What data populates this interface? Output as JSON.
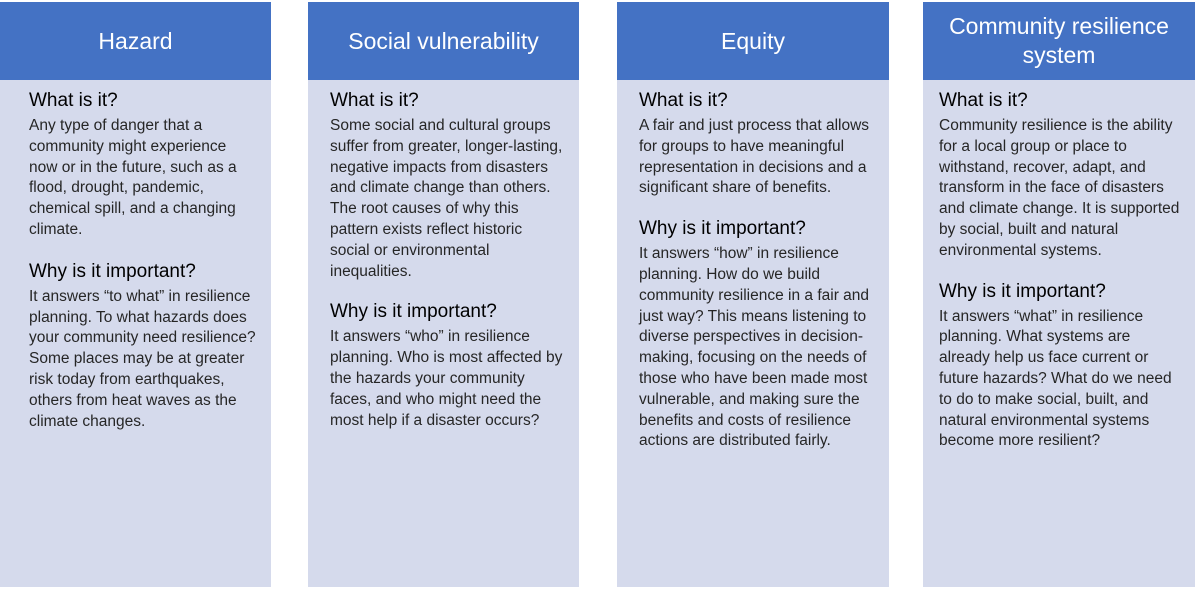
{
  "columns": [
    {
      "title": "Hazard",
      "q1": "What is it?",
      "a1": "Any type of danger that a community might experience now or in the future, such as a flood, drought, pandemic, chemical spill, and a changing climate.",
      "q2": "Why is it important?",
      "a2": "It answers “to what” in resilience planning. To what hazards does your community need resilience? Some places may be at greater risk today from earthquakes, others from heat waves as the climate changes."
    },
    {
      "title": "Social vulnerability",
      "q1": "What is it?",
      "a1": "Some social and cultural groups suffer from greater, longer-lasting, negative impacts from disasters and climate change than others. The root causes of why this pattern exists reflect historic social or environmental inequalities.",
      "q2": "Why is it important?",
      "a2": "It answers “who” in resilience planning. Who is most affected by the hazards your community faces, and who might need the most help if a disaster occurs?"
    },
    {
      "title": "Equity",
      "q1": "What is it?",
      "a1": " A fair and just process that allows for groups to have meaningful representation in decisions and a significant share of benefits.",
      "q2": "Why is it important?",
      "a2": "It answers “how” in resilience planning. How do we build community resilience in a fair and just way? This means listening to diverse perspectives in decision-making, focusing on the needs of those who have been made most vulnerable, and making sure the benefits and costs of resilience actions are distributed fairly."
    },
    {
      "title": "Community resilience system",
      "q1": "What is it?",
      "a1": "Community resilience is the ability for a local group or place to withstand, recover, adapt, and transform in the face of disasters and climate change. It is supported by social, built and natural environmental systems.",
      "q2": "Why is it important?",
      "a2": "It answers “what” in resilience planning. What systems are already help us face current or future hazards? What do we need to do to make  social, built, and natural environmental systems become more resilient?"
    }
  ],
  "colors": {
    "header_bg": "#4472c4",
    "header_text": "#ffffff",
    "panel_bg": "#d5daec",
    "body_text": "#262626"
  }
}
